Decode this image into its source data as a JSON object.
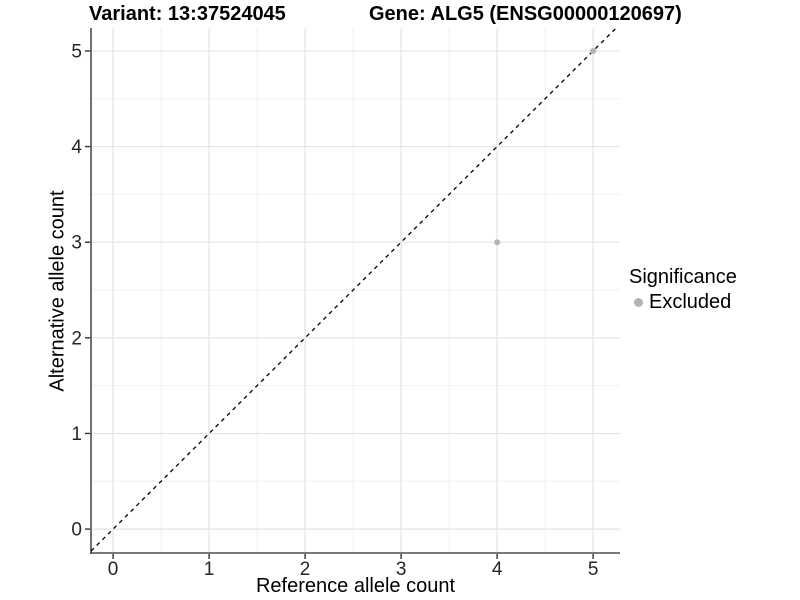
{
  "chart_data": {
    "type": "scatter",
    "title_variant": "Variant: 13:37524045",
    "title_gene": "Gene: ALG5 (ENSG00000120697)",
    "xlabel": "Reference allele count",
    "ylabel": "Alternative allele count",
    "xlim": [
      -0.23,
      5.28
    ],
    "ylim": [
      -0.25,
      5.24
    ],
    "xticks": [
      0,
      1,
      2,
      3,
      4,
      5
    ],
    "yticks": [
      0,
      1,
      2,
      3,
      4,
      5
    ],
    "minor_ticks_x": [
      0.5,
      1.5,
      2.5,
      3.5,
      4.5
    ],
    "minor_ticks_y": [
      0.5,
      1.5,
      2.5,
      3.5,
      4.5
    ],
    "grid": true,
    "identity_line": {
      "equation": "y = x",
      "style": "dashed",
      "color": "#000000"
    },
    "series": [
      {
        "name": "Excluded",
        "color": "#b3b3b3",
        "points": [
          [
            4,
            3
          ],
          [
            5,
            5
          ]
        ]
      }
    ],
    "legend": {
      "title": "Significance",
      "position": "right",
      "entries": [
        {
          "label": "Excluded",
          "color": "#b3b3b3"
        }
      ]
    },
    "colors": {
      "grid_major": "#e3e3e3",
      "grid_minor": "#f0f0f0",
      "axis_line": "#4d4d4d",
      "tick_mark": "#333333",
      "tick_text": "#262626"
    }
  }
}
